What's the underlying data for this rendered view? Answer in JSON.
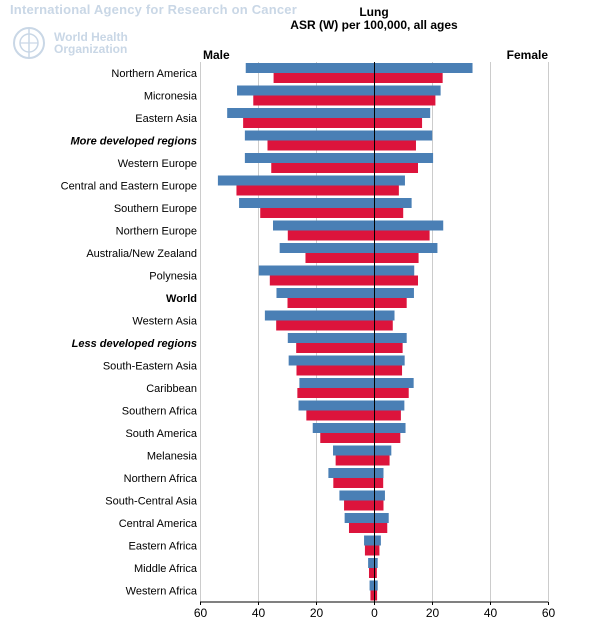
{
  "header": {
    "agency": "International Agency for Research on Cancer",
    "who_line1": "World Health",
    "who_line2": "Organization"
  },
  "colors": {
    "male": "#4a7fb5",
    "female": "#dc143c",
    "grid": "#cccccc",
    "axis": "#000000"
  },
  "chart_data": {
    "type": "bar",
    "orientation": "horizontal-butterfly",
    "title": "Lung",
    "subtitle": "ASR (W) per 100,000, all ages",
    "left_label": "Male",
    "right_label": "Female",
    "xlim": [
      -60,
      60
    ],
    "x_ticks": [
      60,
      40,
      20,
      0,
      20,
      40,
      60
    ],
    "grid": true,
    "series_note_legend": "none",
    "categories": [
      {
        "name": "Northern America",
        "style": "normal"
      },
      {
        "name": "Micronesia",
        "style": "normal"
      },
      {
        "name": "Eastern Asia",
        "style": "normal"
      },
      {
        "name": "More developed regions",
        "style": "bold-italic"
      },
      {
        "name": "Western Europe",
        "style": "normal"
      },
      {
        "name": "Central and Eastern Europe",
        "style": "normal"
      },
      {
        "name": "Southern Europe",
        "style": "normal"
      },
      {
        "name": "Northern Europe",
        "style": "normal"
      },
      {
        "name": "Australia/New Zealand",
        "style": "normal"
      },
      {
        "name": "Polynesia",
        "style": "normal"
      },
      {
        "name": "World",
        "style": "bold"
      },
      {
        "name": "Western Asia",
        "style": "normal"
      },
      {
        "name": "Less developed regions",
        "style": "bold-italic"
      },
      {
        "name": "South-Eastern Asia",
        "style": "normal"
      },
      {
        "name": "Caribbean",
        "style": "normal"
      },
      {
        "name": "Southern Africa",
        "style": "normal"
      },
      {
        "name": "South America",
        "style": "normal"
      },
      {
        "name": "Melanesia",
        "style": "normal"
      },
      {
        "name": "Northern Africa",
        "style": "normal"
      },
      {
        "name": "South-Central Asia",
        "style": "normal"
      },
      {
        "name": "Central America",
        "style": "normal"
      },
      {
        "name": "Eastern Africa",
        "style": "normal"
      },
      {
        "name": "Middle Africa",
        "style": "normal"
      },
      {
        "name": "Western Africa",
        "style": "normal"
      }
    ],
    "series": [
      {
        "key": "male_incidence",
        "values": [
          44.4,
          47.4,
          50.8,
          44.7,
          44.7,
          54.0,
          46.7,
          35.0,
          32.7,
          39.9,
          33.8,
          37.8,
          29.9,
          29.6,
          25.9,
          26.2,
          21.3,
          14.3,
          15.9,
          12.1,
          10.3,
          3.6,
          2.2,
          1.7
        ]
      },
      {
        "key": "male_mortality",
        "values": [
          34.8,
          41.8,
          45.3,
          36.9,
          35.6,
          47.6,
          39.4,
          29.9,
          23.8,
          36.1,
          30.0,
          33.9,
          27.0,
          26.9,
          26.6,
          23.5,
          18.7,
          13.4,
          14.2,
          10.5,
          8.8,
          3.3,
          1.9,
          1.4
        ]
      },
      {
        "key": "female_incidence",
        "values": [
          33.8,
          22.8,
          19.2,
          19.9,
          20.2,
          10.5,
          12.8,
          23.7,
          21.7,
          13.7,
          13.6,
          6.9,
          11.1,
          10.4,
          13.5,
          10.3,
          10.7,
          5.8,
          3.1,
          3.6,
          4.9,
          2.2,
          1.1,
          1.1
        ]
      },
      {
        "key": "female_mortality",
        "values": [
          23.5,
          21.0,
          16.4,
          14.3,
          15.0,
          8.4,
          9.9,
          19.0,
          15.2,
          15.0,
          11.1,
          6.3,
          9.7,
          9.5,
          11.8,
          9.1,
          8.9,
          5.2,
          3.0,
          3.1,
          4.4,
          1.7,
          0.8,
          0.9
        ]
      }
    ]
  }
}
